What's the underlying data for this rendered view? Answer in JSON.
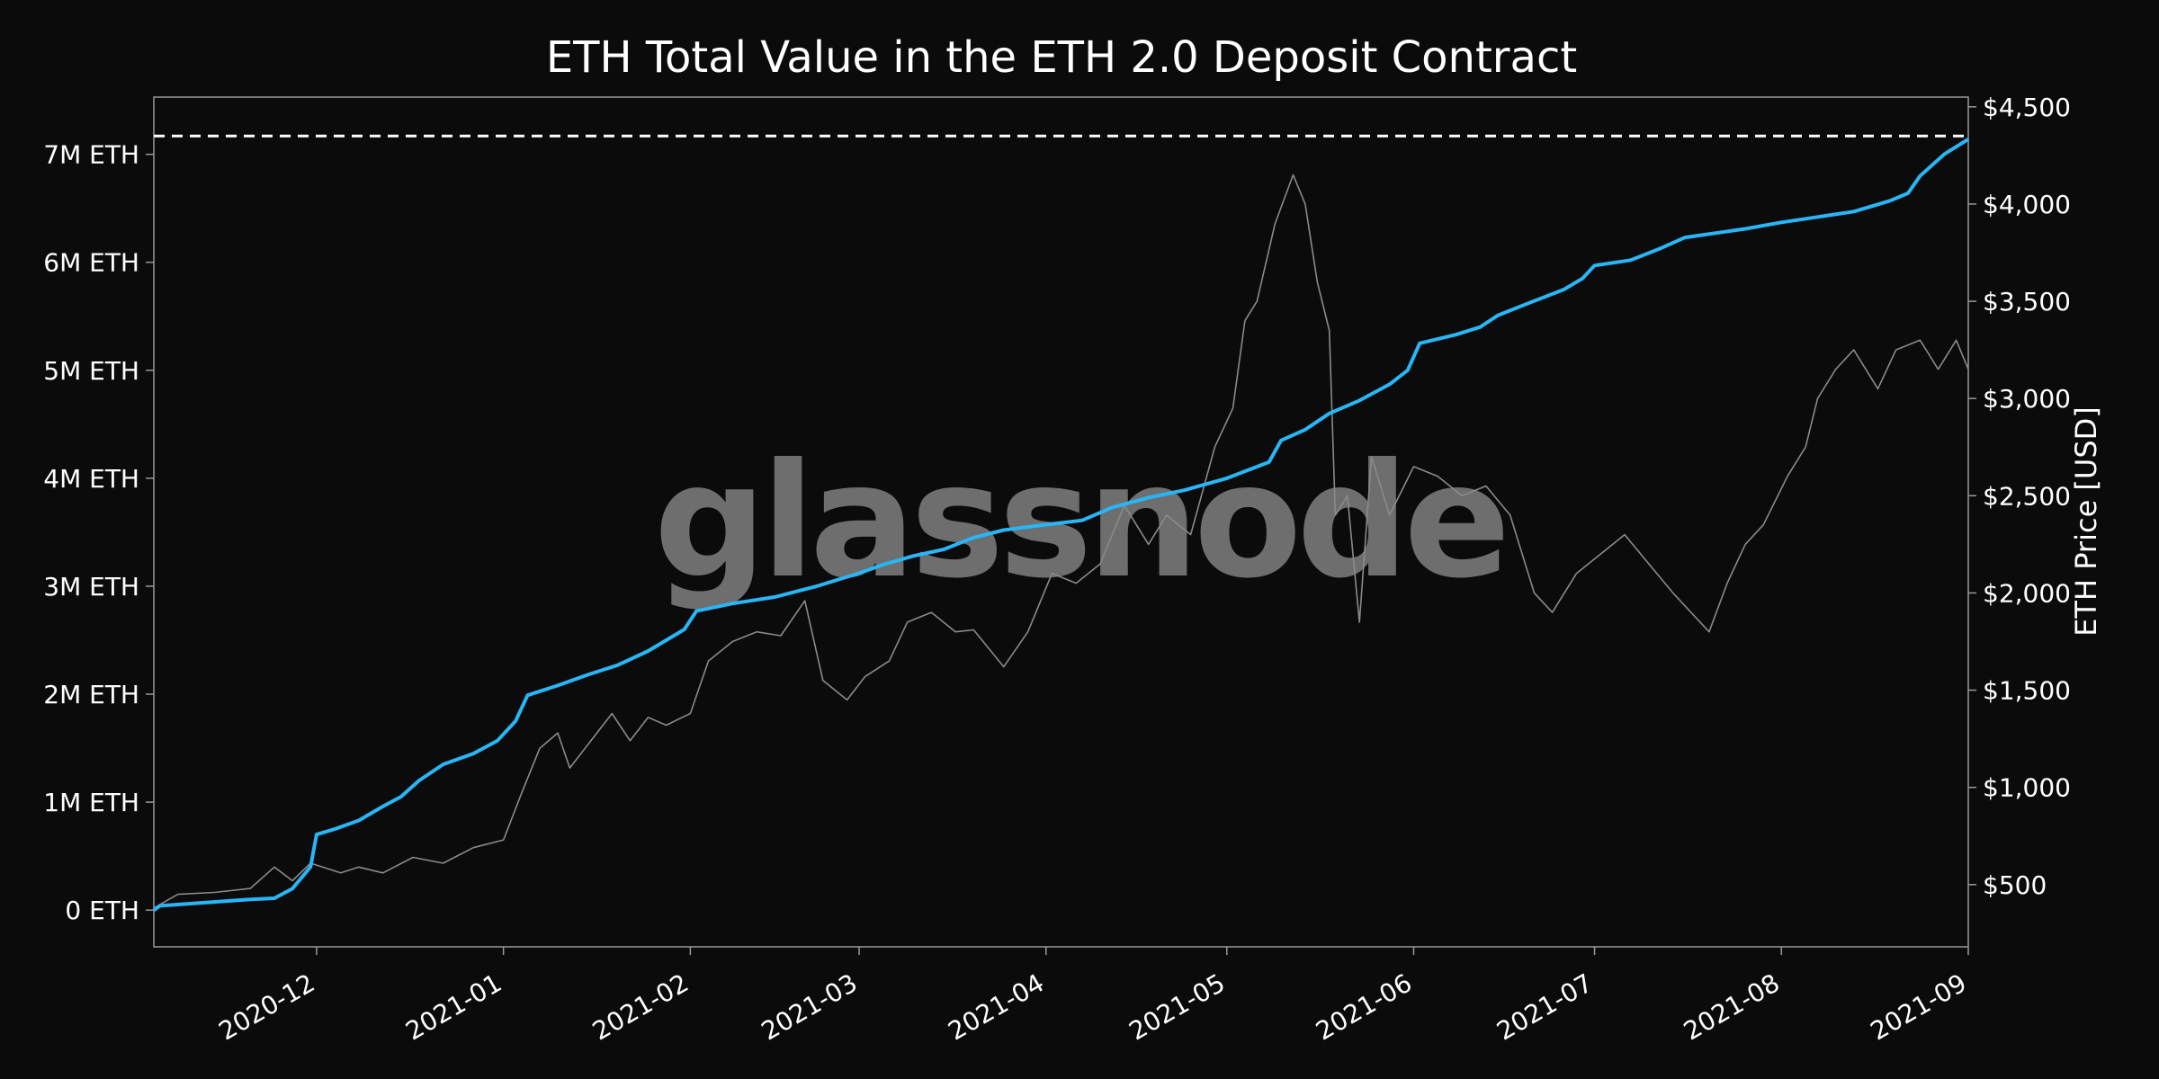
{
  "chart_data": {
    "type": "line",
    "title": "ETH Total Value in the ETH 2.0 Deposit Contract",
    "watermark": "glassnode",
    "x_ticks": [
      "2020-12",
      "2021-01",
      "2021-02",
      "2021-03",
      "2021-04",
      "2021-05",
      "2021-06",
      "2021-07",
      "2021-08",
      "2021-09"
    ],
    "xlim": [
      "2020-11-04",
      "2021-09-01"
    ],
    "y_left": {
      "label": "",
      "ticks": [
        "0 ETH",
        "1M ETH",
        "2M ETH",
        "3M ETH",
        "4M ETH",
        "5M ETH",
        "6M ETH",
        "7M ETH"
      ],
      "tick_values": [
        0,
        1000000,
        2000000,
        3000000,
        4000000,
        5000000,
        6000000,
        7000000
      ],
      "range": [
        -340000,
        7530000
      ]
    },
    "y_right": {
      "label": "ETH Price [USD]",
      "ticks": [
        "$500",
        "$1,000",
        "$1,500",
        "$2,000",
        "$2,500",
        "$3,000",
        "$3,500",
        "$4,000",
        "$4,500"
      ],
      "tick_values": [
        500,
        1000,
        1500,
        2000,
        2500,
        3000,
        3500,
        4000,
        4500
      ],
      "range": [
        180,
        4550
      ]
    },
    "ath_line": {
      "value": 7170000,
      "style": "dashed",
      "color": "#ffffff"
    },
    "grid": false,
    "series": [
      {
        "key": "deposit",
        "axis": "left",
        "color": "#29b6f6",
        "points": [
          [
            "2020-11-04",
            0
          ],
          [
            "2020-11-05",
            40000
          ],
          [
            "2020-11-10",
            60000
          ],
          [
            "2020-11-15",
            80000
          ],
          [
            "2020-11-20",
            100000
          ],
          [
            "2020-11-24",
            110000
          ],
          [
            "2020-11-27",
            200000
          ],
          [
            "2020-11-30",
            400000
          ],
          [
            "2020-12-01",
            700000
          ],
          [
            "2020-12-04",
            750000
          ],
          [
            "2020-12-08",
            830000
          ],
          [
            "2020-12-12",
            960000
          ],
          [
            "2020-12-15",
            1050000
          ],
          [
            "2020-12-18",
            1200000
          ],
          [
            "2020-12-22",
            1350000
          ],
          [
            "2020-12-27",
            1450000
          ],
          [
            "2020-12-31",
            1570000
          ],
          [
            "2021-01-03",
            1750000
          ],
          [
            "2021-01-05",
            1990000
          ],
          [
            "2021-01-10",
            2080000
          ],
          [
            "2021-01-15",
            2180000
          ],
          [
            "2021-01-20",
            2270000
          ],
          [
            "2021-01-25",
            2400000
          ],
          [
            "2021-01-28",
            2500000
          ],
          [
            "2021-01-31",
            2600000
          ],
          [
            "2021-02-02",
            2770000
          ],
          [
            "2021-02-08",
            2840000
          ],
          [
            "2021-02-15",
            2900000
          ],
          [
            "2021-02-22",
            3000000
          ],
          [
            "2021-03-01",
            3120000
          ],
          [
            "2021-03-05",
            3200000
          ],
          [
            "2021-03-10",
            3280000
          ],
          [
            "2021-03-15",
            3340000
          ],
          [
            "2021-03-20",
            3450000
          ],
          [
            "2021-03-25",
            3520000
          ],
          [
            "2021-04-01",
            3570000
          ],
          [
            "2021-04-07",
            3610000
          ],
          [
            "2021-04-12",
            3730000
          ],
          [
            "2021-04-18",
            3820000
          ],
          [
            "2021-04-24",
            3890000
          ],
          [
            "2021-05-01",
            4000000
          ],
          [
            "2021-05-08",
            4150000
          ],
          [
            "2021-05-10",
            4350000
          ],
          [
            "2021-05-14",
            4450000
          ],
          [
            "2021-05-18",
            4600000
          ],
          [
            "2021-05-23",
            4720000
          ],
          [
            "2021-05-28",
            4870000
          ],
          [
            "2021-05-31",
            5000000
          ],
          [
            "2021-06-02",
            5250000
          ],
          [
            "2021-06-08",
            5330000
          ],
          [
            "2021-06-12",
            5400000
          ],
          [
            "2021-06-15",
            5510000
          ],
          [
            "2021-06-20",
            5620000
          ],
          [
            "2021-06-26",
            5750000
          ],
          [
            "2021-06-29",
            5850000
          ],
          [
            "2021-07-01",
            5970000
          ],
          [
            "2021-07-07",
            6020000
          ],
          [
            "2021-07-12",
            6130000
          ],
          [
            "2021-07-16",
            6230000
          ],
          [
            "2021-07-21",
            6270000
          ],
          [
            "2021-07-26",
            6310000
          ],
          [
            "2021-08-01",
            6370000
          ],
          [
            "2021-08-07",
            6420000
          ],
          [
            "2021-08-13",
            6470000
          ],
          [
            "2021-08-19",
            6570000
          ],
          [
            "2021-08-22",
            6640000
          ],
          [
            "2021-08-24",
            6800000
          ],
          [
            "2021-08-28",
            7000000
          ],
          [
            "2021-09-01",
            7140000
          ]
        ]
      },
      {
        "key": "price",
        "axis": "right",
        "color": "#8a8a8a",
        "points": [
          [
            "2020-11-04",
            380
          ],
          [
            "2020-11-08",
            450
          ],
          [
            "2020-11-14",
            460
          ],
          [
            "2020-11-20",
            480
          ],
          [
            "2020-11-24",
            590
          ],
          [
            "2020-11-27",
            520
          ],
          [
            "2020-11-30",
            610
          ],
          [
            "2020-12-02",
            590
          ],
          [
            "2020-12-05",
            560
          ],
          [
            "2020-12-08",
            590
          ],
          [
            "2020-12-12",
            560
          ],
          [
            "2020-12-17",
            640
          ],
          [
            "2020-12-22",
            610
          ],
          [
            "2020-12-27",
            690
          ],
          [
            "2021-01-01",
            730
          ],
          [
            "2021-01-04",
            970
          ],
          [
            "2021-01-07",
            1200
          ],
          [
            "2021-01-10",
            1280
          ],
          [
            "2021-01-12",
            1100
          ],
          [
            "2021-01-15",
            1220
          ],
          [
            "2021-01-19",
            1380
          ],
          [
            "2021-01-22",
            1240
          ],
          [
            "2021-01-25",
            1360
          ],
          [
            "2021-01-28",
            1320
          ],
          [
            "2021-02-01",
            1380
          ],
          [
            "2021-02-04",
            1650
          ],
          [
            "2021-02-08",
            1750
          ],
          [
            "2021-02-12",
            1800
          ],
          [
            "2021-02-16",
            1780
          ],
          [
            "2021-02-20",
            1960
          ],
          [
            "2021-02-23",
            1550
          ],
          [
            "2021-02-27",
            1450
          ],
          [
            "2021-03-02",
            1570
          ],
          [
            "2021-03-06",
            1650
          ],
          [
            "2021-03-09",
            1850
          ],
          [
            "2021-03-13",
            1900
          ],
          [
            "2021-03-17",
            1800
          ],
          [
            "2021-03-20",
            1810
          ],
          [
            "2021-03-25",
            1620
          ],
          [
            "2021-03-29",
            1800
          ],
          [
            "2021-04-02",
            2100
          ],
          [
            "2021-04-06",
            2050
          ],
          [
            "2021-04-10",
            2150
          ],
          [
            "2021-04-14",
            2450
          ],
          [
            "2021-04-18",
            2250
          ],
          [
            "2021-04-21",
            2400
          ],
          [
            "2021-04-25",
            2300
          ],
          [
            "2021-04-29",
            2750
          ],
          [
            "2021-05-02",
            2950
          ],
          [
            "2021-05-04",
            3400
          ],
          [
            "2021-05-06",
            3500
          ],
          [
            "2021-05-09",
            3900
          ],
          [
            "2021-05-12",
            4150
          ],
          [
            "2021-05-14",
            4000
          ],
          [
            "2021-05-16",
            3600
          ],
          [
            "2021-05-18",
            3350
          ],
          [
            "2021-05-19",
            2400
          ],
          [
            "2021-05-21",
            2500
          ],
          [
            "2021-05-23",
            1850
          ],
          [
            "2021-05-25",
            2700
          ],
          [
            "2021-05-28",
            2400
          ],
          [
            "2021-06-01",
            2650
          ],
          [
            "2021-06-05",
            2600
          ],
          [
            "2021-06-09",
            2500
          ],
          [
            "2021-06-13",
            2550
          ],
          [
            "2021-06-17",
            2400
          ],
          [
            "2021-06-21",
            2000
          ],
          [
            "2021-06-24",
            1900
          ],
          [
            "2021-06-28",
            2100
          ],
          [
            "2021-07-02",
            2200
          ],
          [
            "2021-07-06",
            2300
          ],
          [
            "2021-07-10",
            2150
          ],
          [
            "2021-07-14",
            2000
          ],
          [
            "2021-07-17",
            1900
          ],
          [
            "2021-07-20",
            1800
          ],
          [
            "2021-07-23",
            2050
          ],
          [
            "2021-07-26",
            2250
          ],
          [
            "2021-07-29",
            2350
          ],
          [
            "2021-08-02",
            2600
          ],
          [
            "2021-08-05",
            2750
          ],
          [
            "2021-08-07",
            3000
          ],
          [
            "2021-08-10",
            3150
          ],
          [
            "2021-08-13",
            3250
          ],
          [
            "2021-08-17",
            3050
          ],
          [
            "2021-08-20",
            3250
          ],
          [
            "2021-08-24",
            3300
          ],
          [
            "2021-08-27",
            3150
          ],
          [
            "2021-08-30",
            3300
          ],
          [
            "2021-09-01",
            3150
          ]
        ]
      }
    ]
  }
}
